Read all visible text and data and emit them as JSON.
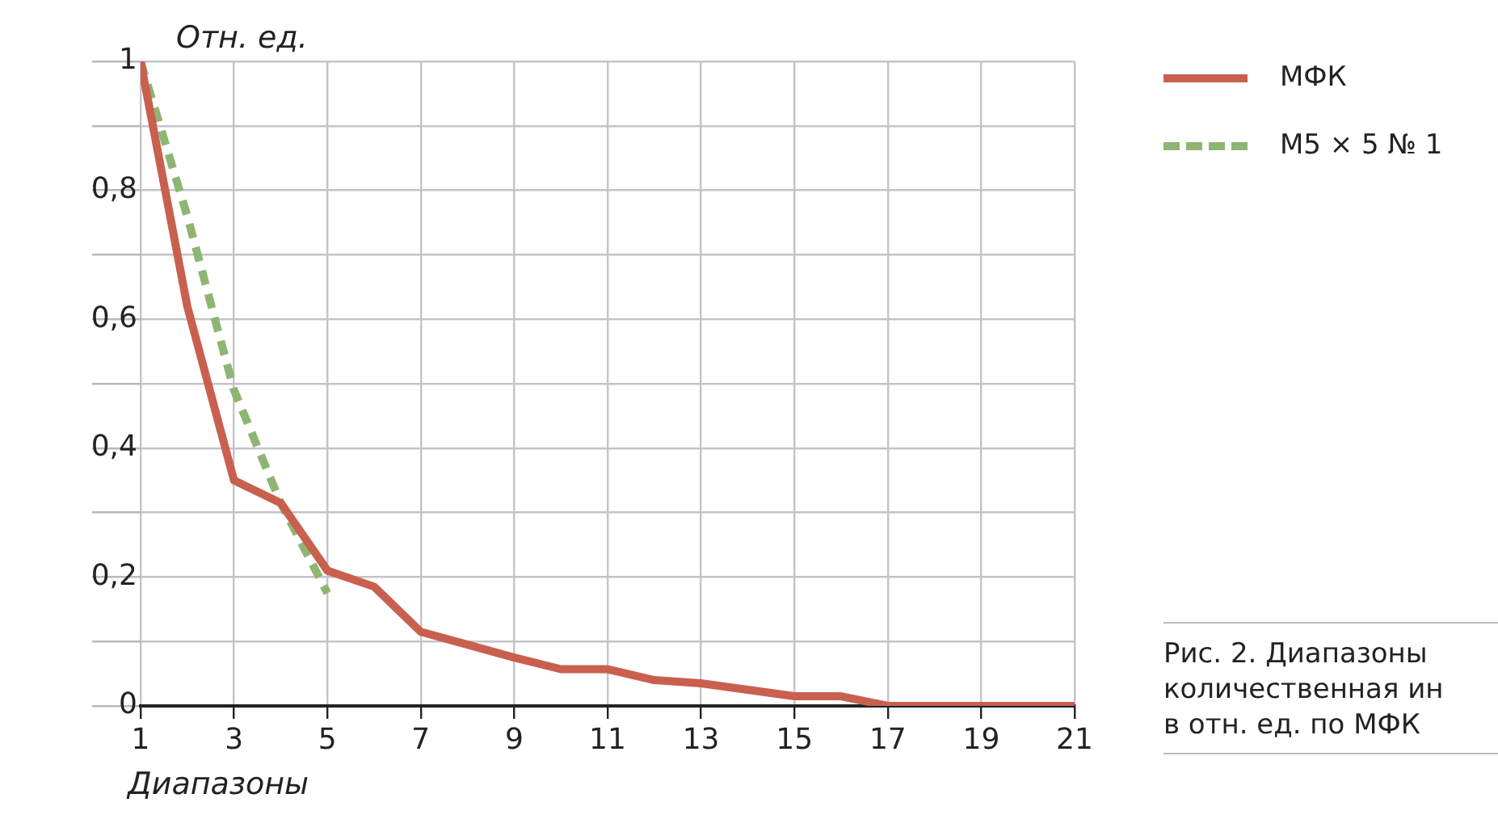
{
  "chart_data": {
    "type": "line",
    "ylabel": "Отн. ед.",
    "xlabel": "Диапазоны",
    "annotations": [
      "Рис. 2. Диапазоны\nколичественная ин\nв отн. ед. по МФК"
    ],
    "xlim": [
      1,
      21
    ],
    "xticks": [
      1,
      3,
      5,
      7,
      9,
      11,
      13,
      15,
      17,
      19,
      21
    ],
    "ylim": [
      0,
      1
    ],
    "yticks": [
      0,
      {
        "value": 0.1,
        "label": null
      },
      {
        "value": 0.2,
        "label": "0,2"
      },
      {
        "value": 0.3,
        "label": null
      },
      {
        "value": 0.4,
        "label": "0,4"
      },
      {
        "value": 0.5,
        "label": null
      },
      {
        "value": 0.6,
        "label": "0,6"
      },
      {
        "value": 0.7,
        "label": null
      },
      {
        "value": 0.8,
        "label": "0,8"
      },
      {
        "value": 0.9,
        "label": null
      },
      1
    ],
    "grid": true,
    "legend": "top right",
    "marker": "none",
    "series": [
      {
        "name": "МФК",
        "color": "#c9604f",
        "line_style": "solid",
        "x": [
          1,
          2,
          3,
          4,
          5,
          6,
          7,
          8,
          9,
          10,
          11,
          12,
          13,
          14,
          15,
          16,
          17,
          18,
          19,
          20,
          21
        ],
        "values": [
          1,
          0.62,
          0.35,
          0.315,
          0.21,
          0.185,
          0.115,
          0.095,
          0.075,
          0.057,
          0.057,
          0.04,
          0.035,
          0.025,
          0.015,
          0.015,
          0,
          0,
          0,
          0,
          0
        ]
      },
      {
        "name": "М5 × 5 № 1",
        "color": "#8fb573",
        "line_style": "dashed",
        "x": [
          1,
          2,
          3,
          4,
          5
        ],
        "values": [
          1,
          0.76,
          0.49,
          0.315,
          0.175
        ]
      }
    ]
  }
}
